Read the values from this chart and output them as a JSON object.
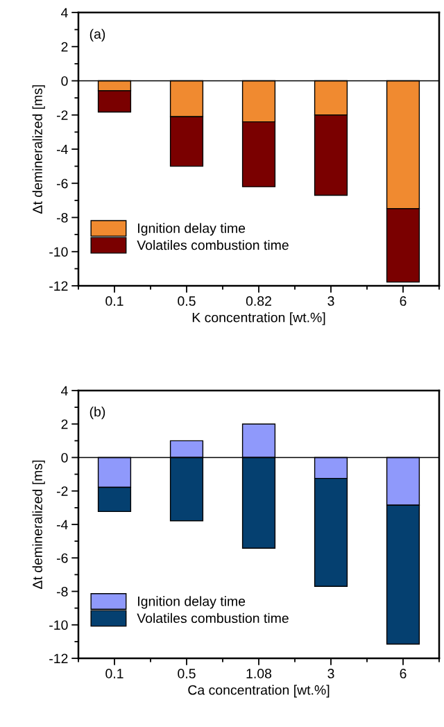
{
  "chart_data": [
    {
      "type": "bar",
      "stacked": true,
      "categories": [
        "0.1",
        "0.5",
        "0.82",
        "3",
        "6"
      ],
      "xlabel": "K concentration [wt.%]",
      "ylabel": "Δt demineralized [ms]",
      "ylim": [
        -12,
        4
      ],
      "yticks": [
        -12,
        -10,
        -8,
        -6,
        -4,
        -2,
        0,
        2,
        4
      ],
      "legend": "bottom left",
      "grid": false,
      "annotations": [
        "(a)"
      ],
      "ref_lines": [
        {
          "axis": "y",
          "value": 0,
          "color": "#000000"
        }
      ],
      "series": [
        {
          "name": "Ignition delay time",
          "color": "#f08a30",
          "values": [
            -0.58,
            -2.1,
            -2.4,
            -2.0,
            -7.48
          ]
        },
        {
          "name": "Volatiles combustion time",
          "color": "#7a0000",
          "values": [
            -1.25,
            -2.9,
            -3.8,
            -4.7,
            -4.3
          ]
        }
      ]
    },
    {
      "type": "bar",
      "stacked": true,
      "categories": [
        "0.1",
        "0.5",
        "1.08",
        "3",
        "6"
      ],
      "xlabel": "Ca concentration [wt.%]",
      "ylabel": "Δt demineralized [ms]",
      "ylim": [
        -12,
        4
      ],
      "yticks": [
        -12,
        -10,
        -8,
        -6,
        -4,
        -2,
        0,
        2,
        4
      ],
      "legend": "bottom left",
      "grid": false,
      "annotations": [
        "(b)"
      ],
      "ref_lines": [
        {
          "axis": "y",
          "value": 0,
          "color": "#000000"
        }
      ],
      "series": [
        {
          "name": "Ignition delay time",
          "color": "#8f99fb",
          "values": [
            -1.78,
            1.0,
            2.0,
            -1.25,
            -2.85
          ]
        },
        {
          "name": "Volatiles combustion time",
          "color": "#054070",
          "values": [
            -1.45,
            -3.78,
            -5.42,
            -6.45,
            -8.3
          ]
        }
      ]
    }
  ]
}
